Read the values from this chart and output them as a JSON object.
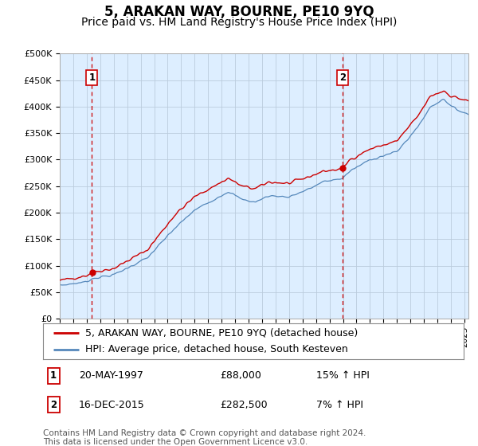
{
  "title": "5, ARAKAN WAY, BOURNE, PE10 9YQ",
  "subtitle": "Price paid vs. HM Land Registry's House Price Index (HPI)",
  "ylabel_ticks": [
    "£0",
    "£50K",
    "£100K",
    "£150K",
    "£200K",
    "£250K",
    "£300K",
    "£350K",
    "£400K",
    "£450K",
    "£500K"
  ],
  "ytick_values": [
    0,
    50000,
    100000,
    150000,
    200000,
    250000,
    300000,
    350000,
    400000,
    450000,
    500000
  ],
  "ylim": [
    0,
    500000
  ],
  "xlim_start": 1995.0,
  "xlim_end": 2025.3,
  "sale1_x": 1997.38,
  "sale1_y": 88000,
  "sale1_label": "1",
  "sale1_date": "20-MAY-1997",
  "sale1_price": "£88,000",
  "sale1_hpi": "15% ↑ HPI",
  "sale2_x": 2015.96,
  "sale2_y": 282500,
  "sale2_label": "2",
  "sale2_date": "16-DEC-2015",
  "sale2_price": "£282,500",
  "sale2_hpi": "7% ↑ HPI",
  "line_color_price": "#cc0000",
  "line_color_hpi": "#5588bb",
  "chart_bg_color": "#ddeeff",
  "legend_price_label": "5, ARAKAN WAY, BOURNE, PE10 9YQ (detached house)",
  "legend_hpi_label": "HPI: Average price, detached house, South Kesteven",
  "footer_text": "Contains HM Land Registry data © Crown copyright and database right 2024.\nThis data is licensed under the Open Government Licence v3.0.",
  "background_color": "#ffffff",
  "grid_color": "#bbccdd",
  "title_fontsize": 12,
  "subtitle_fontsize": 10,
  "tick_fontsize": 8,
  "legend_fontsize": 9,
  "footer_fontsize": 7.5
}
